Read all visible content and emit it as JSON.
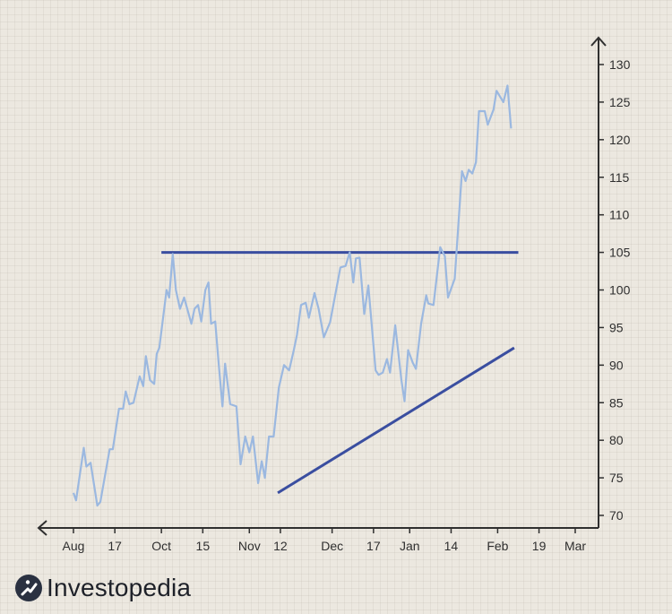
{
  "chart_data": {
    "type": "line",
    "title": "",
    "xlabel": "",
    "ylabel": "",
    "ylim": [
      69,
      131
    ],
    "xlim": [
      0,
      102
    ],
    "y_axis_position": "right",
    "grid": false,
    "y_ticks": [
      70,
      75,
      80,
      85,
      90,
      95,
      100,
      105,
      110,
      115,
      120,
      125,
      130
    ],
    "x_ticks": [
      {
        "x": 4,
        "label": "Aug"
      },
      {
        "x": 12,
        "label": "17"
      },
      {
        "x": 21,
        "label": "Oct"
      },
      {
        "x": 29,
        "label": "15"
      },
      {
        "x": 38,
        "label": "Nov"
      },
      {
        "x": 44,
        "label": "12"
      },
      {
        "x": 54,
        "label": "Dec"
      },
      {
        "x": 62,
        "label": "17"
      },
      {
        "x": 69,
        "label": "Jan"
      },
      {
        "x": 77,
        "label": "14"
      },
      {
        "x": 86,
        "label": "Feb"
      },
      {
        "x": 94,
        "label": "19"
      },
      {
        "x": 101,
        "label": "Mar"
      }
    ],
    "series": [
      {
        "color": "#9bb8e0",
        "points": [
          [
            4,
            73
          ],
          [
            4.5,
            72
          ],
          [
            6,
            79
          ],
          [
            6.5,
            76.5
          ],
          [
            7.3,
            77
          ],
          [
            8.6,
            71.3
          ],
          [
            9.2,
            71.8
          ],
          [
            11,
            78.8
          ],
          [
            11.6,
            78.8
          ],
          [
            12.8,
            84.2
          ],
          [
            13.6,
            84.2
          ],
          [
            14.1,
            86.5
          ],
          [
            14.8,
            84.8
          ],
          [
            15.6,
            85
          ],
          [
            16.8,
            88.5
          ],
          [
            17.5,
            87.2
          ],
          [
            18,
            91.2
          ],
          [
            18.8,
            88
          ],
          [
            19.6,
            87.5
          ],
          [
            20.1,
            91.5
          ],
          [
            20.6,
            92.3
          ],
          [
            22,
            100
          ],
          [
            22.5,
            99
          ],
          [
            23.2,
            104.8
          ],
          [
            23.8,
            100
          ],
          [
            24.6,
            97.5
          ],
          [
            25.4,
            99
          ],
          [
            26.8,
            95.5
          ],
          [
            27.4,
            97.5
          ],
          [
            28.1,
            98
          ],
          [
            28.7,
            95.8
          ],
          [
            29.5,
            100
          ],
          [
            30.1,
            101
          ],
          [
            30.6,
            95.5
          ],
          [
            31.4,
            95.8
          ],
          [
            32.1,
            90
          ],
          [
            32.8,
            84.5
          ],
          [
            33.3,
            90.2
          ],
          [
            34.3,
            84.8
          ],
          [
            35.5,
            84.5
          ],
          [
            36.3,
            76.8
          ],
          [
            37.2,
            80.5
          ],
          [
            38,
            78.4
          ],
          [
            38.7,
            80.5
          ],
          [
            39.7,
            74.3
          ],
          [
            40.4,
            77.2
          ],
          [
            41,
            75
          ],
          [
            41.8,
            80.5
          ],
          [
            42.7,
            80.5
          ],
          [
            43.7,
            87
          ],
          [
            44.7,
            90
          ],
          [
            45.7,
            89.3
          ],
          [
            46.6,
            92
          ],
          [
            47.2,
            94
          ],
          [
            48,
            98
          ],
          [
            48.9,
            98.3
          ],
          [
            49.5,
            96.3
          ],
          [
            50.6,
            99.6
          ],
          [
            51.4,
            97.5
          ],
          [
            52.4,
            93.7
          ],
          [
            53.6,
            95.7
          ],
          [
            55.6,
            103
          ],
          [
            56.6,
            103.2
          ],
          [
            57.4,
            105
          ],
          [
            58.1,
            101
          ],
          [
            58.6,
            104.2
          ],
          [
            59.3,
            104.3
          ],
          [
            60.2,
            96.8
          ],
          [
            61,
            100.6
          ],
          [
            62.4,
            89.3
          ],
          [
            63,
            88.7
          ],
          [
            63.8,
            89
          ],
          [
            64.6,
            90.8
          ],
          [
            65.2,
            89
          ],
          [
            66.2,
            95.3
          ],
          [
            67.4,
            88
          ],
          [
            68,
            85.2
          ],
          [
            68.7,
            92
          ],
          [
            69.6,
            90.3
          ],
          [
            70.2,
            89.5
          ],
          [
            71.2,
            95.5
          ],
          [
            72.2,
            99.3
          ],
          [
            72.6,
            98.2
          ],
          [
            73.6,
            98
          ],
          [
            74.9,
            105.7
          ],
          [
            75.8,
            104.5
          ],
          [
            76.4,
            99
          ],
          [
            77.7,
            101.5
          ],
          [
            79.1,
            115.8
          ],
          [
            79.8,
            114.5
          ],
          [
            80.4,
            116
          ],
          [
            81.1,
            115.5
          ],
          [
            81.8,
            117
          ],
          [
            82.4,
            123.8
          ],
          [
            83.5,
            123.8
          ],
          [
            84.1,
            122
          ],
          [
            85.2,
            124
          ],
          [
            85.8,
            126.5
          ],
          [
            87.1,
            125
          ],
          [
            87.9,
            127.2
          ],
          [
            88.6,
            121.5
          ]
        ]
      }
    ],
    "annotations": [
      {
        "type": "resistance-line",
        "color": "#3a4ea0",
        "from": [
          21,
          105
        ],
        "to": [
          90,
          105
        ]
      },
      {
        "type": "support-trendline",
        "color": "#3a4ea0",
        "from": [
          43.5,
          73
        ],
        "to": [
          89.2,
          92.3
        ]
      }
    ]
  },
  "brand": {
    "name": "Investopedia",
    "mark_color": "#2a3141"
  }
}
